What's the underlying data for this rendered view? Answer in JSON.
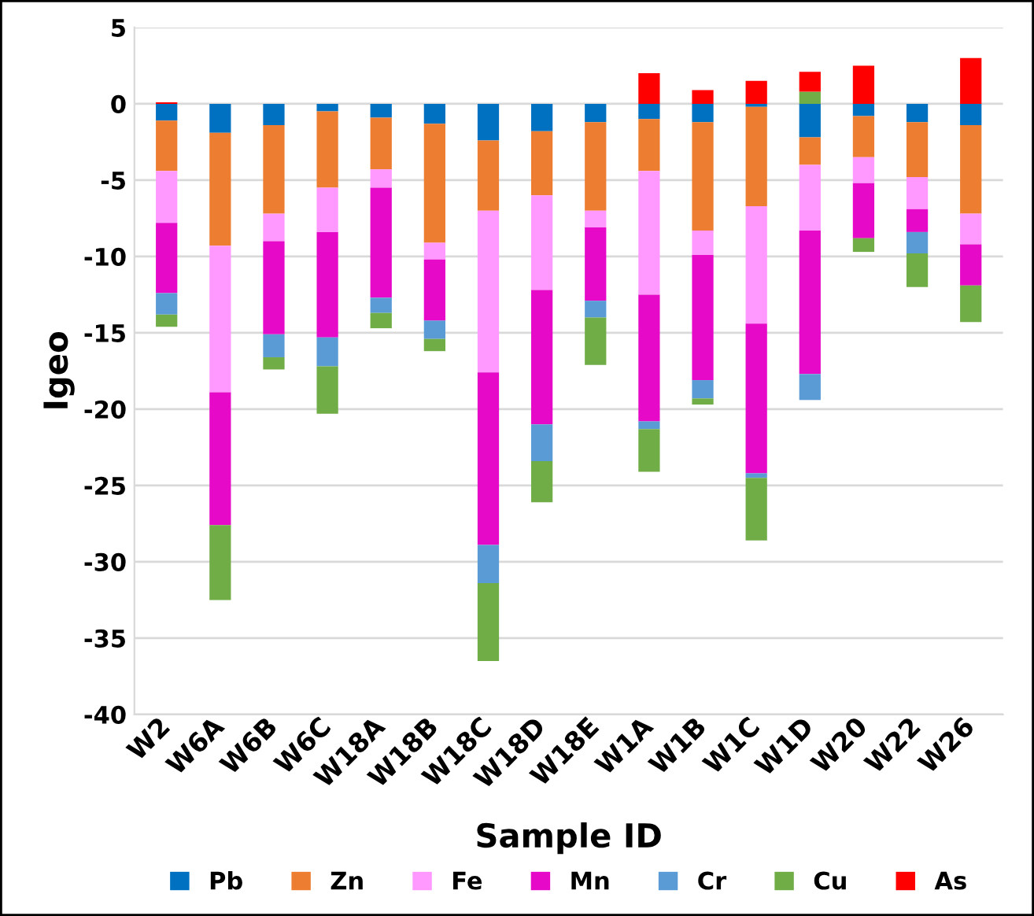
{
  "chart_data": {
    "type": "bar",
    "stacked": true,
    "xlabel": "Sample ID",
    "ylabel": "Igeo",
    "categories": [
      "W2",
      "W6A",
      "W6B",
      "W6C",
      "W18A",
      "W18B",
      "W18C",
      "W18D",
      "W18E",
      "W1A",
      "W1B",
      "W1C",
      "W1D",
      "W20",
      "W22",
      "W26"
    ],
    "series": [
      {
        "name": "Pb",
        "color": "#0070c0",
        "values": [
          -1.1,
          -1.9,
          -1.4,
          -0.5,
          -0.9,
          -1.3,
          -2.4,
          -1.8,
          -1.2,
          -1.0,
          -1.2,
          -0.2,
          -2.2,
          -0.8,
          -1.2,
          -1.4
        ]
      },
      {
        "name": "Zn",
        "color": "#ed7d31",
        "values": [
          -3.3,
          -7.4,
          -5.8,
          -5.0,
          -3.4,
          -7.8,
          -4.6,
          -4.2,
          -5.8,
          -3.4,
          -7.1,
          -6.5,
          -1.8,
          -2.7,
          -3.6,
          -5.8
        ]
      },
      {
        "name": "Fe",
        "color": "#ff99ff",
        "values": [
          -3.4,
          -9.6,
          -1.8,
          -2.9,
          -1.2,
          -1.1,
          -10.6,
          -6.2,
          -1.1,
          -8.1,
          -1.6,
          -7.7,
          -4.3,
          -1.7,
          -2.1,
          -2.0
        ]
      },
      {
        "name": "Mn",
        "color": "#e60ac8",
        "values": [
          -4.6,
          -8.7,
          -6.1,
          -6.9,
          -7.2,
          -4.0,
          -11.3,
          -8.8,
          -4.8,
          -8.3,
          -8.2,
          -9.8,
          -9.4,
          -3.6,
          -1.5,
          -2.7
        ]
      },
      {
        "name": "Cr",
        "color": "#5b9bd5",
        "values": [
          -1.4,
          0,
          -1.5,
          -1.9,
          -1.0,
          -1.2,
          -2.5,
          -2.4,
          -1.1,
          -0.5,
          -1.2,
          -0.3,
          -1.7,
          0,
          -1.4,
          0
        ]
      },
      {
        "name": "Cu",
        "color": "#70ad47",
        "values": [
          -0.8,
          -4.9,
          -0.8,
          -3.1,
          -1.0,
          -0.8,
          -5.1,
          -2.7,
          -3.1,
          -2.8,
          -0.4,
          -4.1,
          0.8,
          -0.9,
          -2.2,
          -2.4
        ]
      },
      {
        "name": "As",
        "color": "#ff0000",
        "values": [
          0.1,
          0,
          0,
          0,
          0,
          0,
          0,
          0,
          0,
          2.0,
          0.9,
          1.5,
          1.3,
          2.5,
          0,
          3.0
        ]
      }
    ],
    "ylim": [
      -40,
      5
    ],
    "yticks": [
      5,
      0,
      -5,
      -10,
      -15,
      -20,
      -25,
      -30,
      -35,
      -40
    ],
    "grid": "y",
    "legend": "bottom"
  }
}
